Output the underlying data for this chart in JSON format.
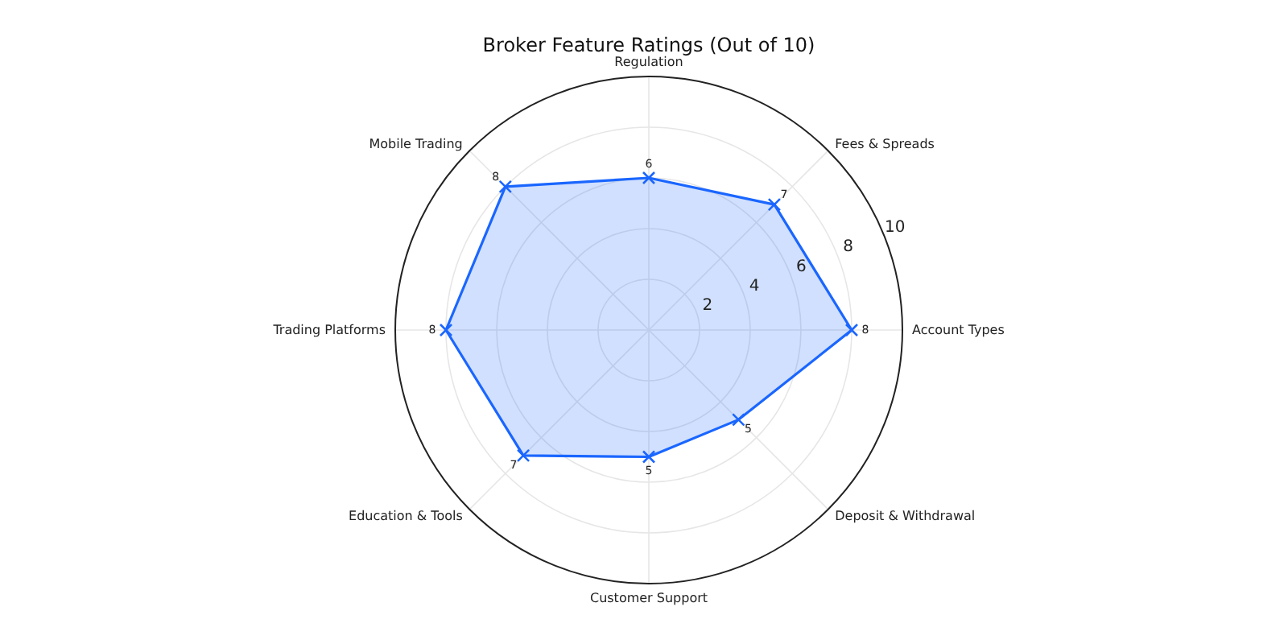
{
  "chart_data": {
    "type": "radar",
    "title": "Broker Feature Ratings (Out of 10)",
    "categories": [
      "Regulation",
      "Fees & Spreads",
      "Account Types",
      "Deposit & Withdrawal",
      "Customer Support",
      "Education & Tools",
      "Trading Platforms",
      "Mobile Trading"
    ],
    "series": [
      {
        "color": "#1a66ff",
        "values": [
          6,
          7,
          8,
          5,
          5,
          7,
          8,
          8
        ]
      }
    ],
    "ylim": [
      0,
      10
    ],
    "yticks": [
      2,
      4,
      6,
      8,
      10
    ],
    "grid": true,
    "marker": "cross",
    "line_style": "solid",
    "data_labels": true
  }
}
